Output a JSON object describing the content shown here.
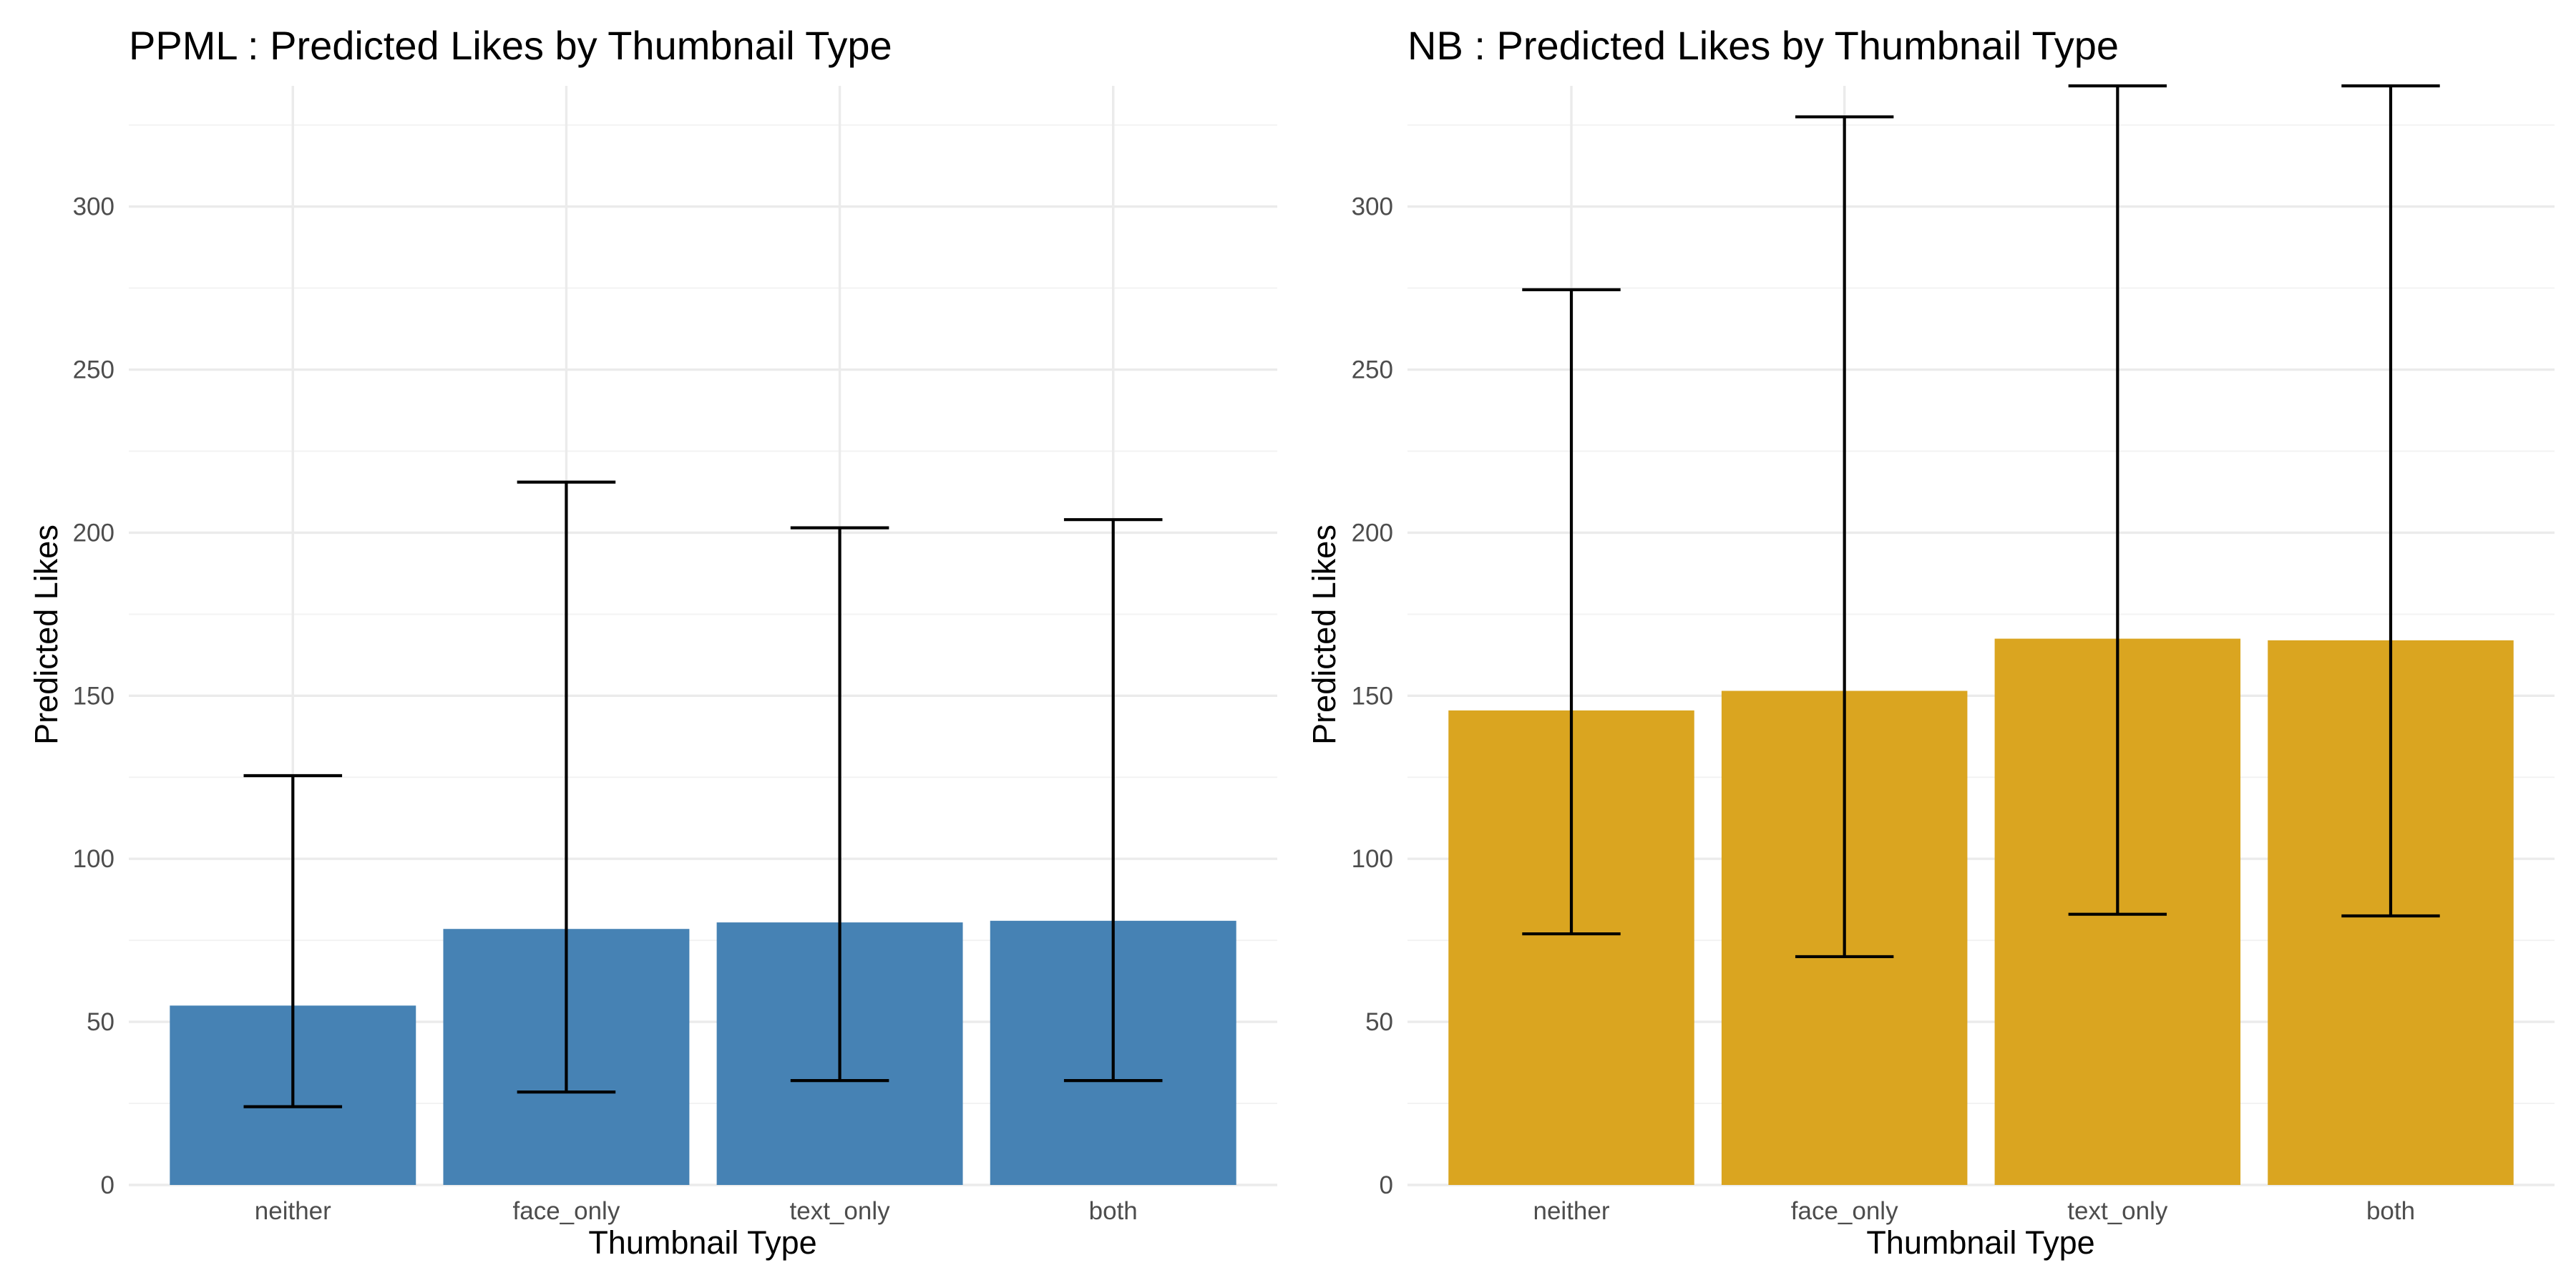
{
  "chart_data": [
    {
      "type": "bar",
      "title": "PPML : Predicted Likes by Thumbnail Type",
      "xlabel": "Thumbnail Type",
      "ylabel": "Predicted Likes",
      "categories": [
        "neither",
        "face_only",
        "text_only",
        "both"
      ],
      "values": [
        55,
        78.5,
        80.5,
        81
      ],
      "error_low": [
        24,
        28.5,
        32,
        32
      ],
      "error_high": [
        125.5,
        215.5,
        201.5,
        204
      ],
      "ylim": [
        0,
        337
      ],
      "yticks": [
        0,
        50,
        100,
        150,
        200,
        250,
        300
      ],
      "bar_color": "#4682b4",
      "grid": true
    },
    {
      "type": "bar",
      "title": "NB : Predicted Likes by Thumbnail Type",
      "xlabel": "Thumbnail Type",
      "ylabel": "Predicted Likes",
      "categories": [
        "neither",
        "face_only",
        "text_only",
        "both"
      ],
      "values": [
        145.5,
        151.5,
        167.5,
        167
      ],
      "error_low": [
        77,
        70,
        83,
        82.5
      ],
      "error_high": [
        274.5,
        327.5,
        337,
        337
      ],
      "ylim": [
        0,
        337
      ],
      "yticks": [
        0,
        50,
        100,
        150,
        200,
        250,
        300
      ],
      "bar_color": "#daa520",
      "grid": true
    }
  ]
}
